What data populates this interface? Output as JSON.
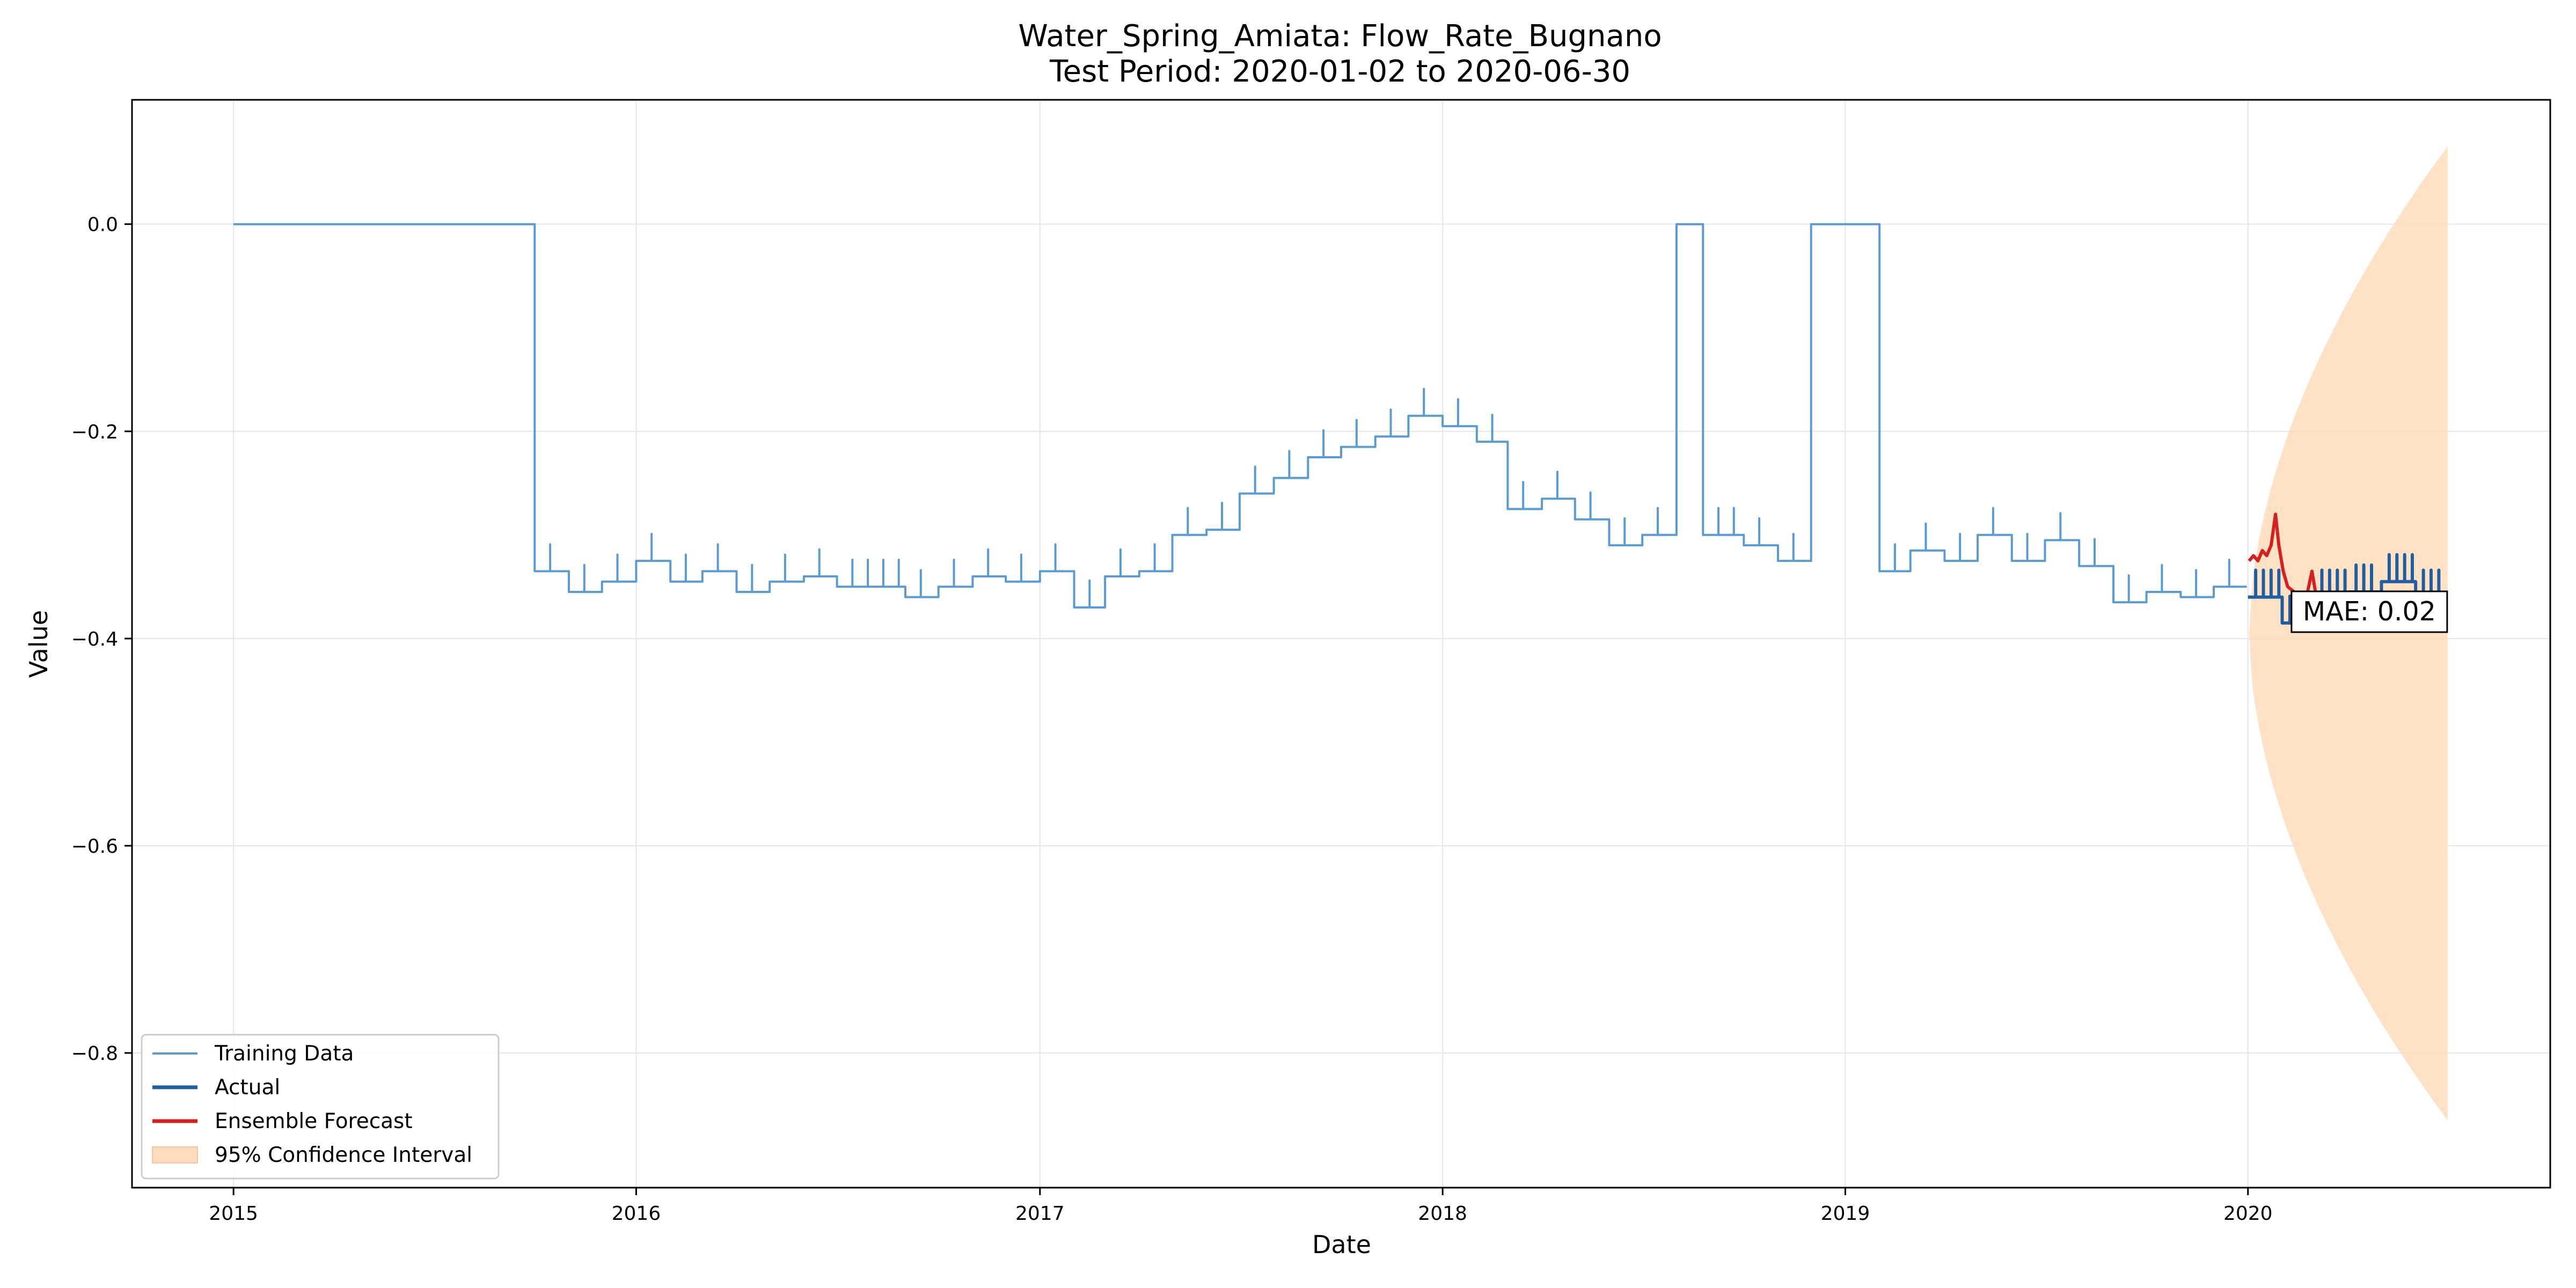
{
  "chart_data": {
    "type": "line",
    "title": "Water_Spring_Amiata: Flow_Rate_Bugnano",
    "subtitle": "Test Period: 2020-01-02 to 2020-06-30",
    "xlabel": "Date",
    "ylabel": "Value",
    "xlim": [
      "2014-10-01",
      "2020-10-01"
    ],
    "ylim": [
      -0.93,
      0.12
    ],
    "x_ticks": [
      "2015",
      "2016",
      "2017",
      "2018",
      "2019",
      "2020"
    ],
    "y_ticks": [
      0.0,
      -0.2,
      -0.4,
      -0.6,
      -0.8
    ],
    "y_tick_labels": [
      "0.0",
      "−0.2",
      "−0.4",
      "−0.6",
      "−0.8"
    ],
    "grid": true,
    "legend_position": "lower-left",
    "series": [
      {
        "name": "Training Data",
        "color": "#5b9bd5",
        "style": "step",
        "ripple": {
          "depth": 0.026,
          "interval_days": 14,
          "start": "2015-10-01",
          "end": "2019-12-31"
        },
        "points": [
          [
            "2015-01-01",
            0.0
          ],
          [
            "2015-10-01",
            -0.335
          ],
          [
            "2015-11-01",
            -0.355
          ],
          [
            "2015-12-01",
            -0.345
          ],
          [
            "2016-01-01",
            -0.325
          ],
          [
            "2016-02-01",
            -0.345
          ],
          [
            "2016-03-01",
            -0.335
          ],
          [
            "2016-04-01",
            -0.355
          ],
          [
            "2016-05-01",
            -0.345
          ],
          [
            "2016-06-01",
            -0.34
          ],
          [
            "2016-07-01",
            -0.35
          ],
          [
            "2016-09-01",
            -0.36
          ],
          [
            "2016-10-01",
            -0.35
          ],
          [
            "2016-11-01",
            -0.34
          ],
          [
            "2016-12-01",
            -0.345
          ],
          [
            "2017-01-01",
            -0.335
          ],
          [
            "2017-02-01",
            -0.37
          ],
          [
            "2017-03-01",
            -0.34
          ],
          [
            "2017-04-01",
            -0.335
          ],
          [
            "2017-05-01",
            -0.3
          ],
          [
            "2017-06-01",
            -0.295
          ],
          [
            "2017-07-01",
            -0.26
          ],
          [
            "2017-08-01",
            -0.245
          ],
          [
            "2017-09-01",
            -0.225
          ],
          [
            "2017-10-01",
            -0.215
          ],
          [
            "2017-11-01",
            -0.205
          ],
          [
            "2017-12-01",
            -0.185
          ],
          [
            "2018-01-01",
            -0.195
          ],
          [
            "2018-02-01",
            -0.21
          ],
          [
            "2018-03-01",
            -0.275
          ],
          [
            "2018-04-01",
            -0.265
          ],
          [
            "2018-05-01",
            -0.285
          ],
          [
            "2018-06-01",
            -0.31
          ],
          [
            "2018-07-01",
            -0.3
          ],
          [
            "2018-08-01",
            0.0
          ],
          [
            "2018-08-25",
            -0.3
          ],
          [
            "2018-10-01",
            -0.31
          ],
          [
            "2018-11-01",
            -0.325
          ],
          [
            "2018-12-01",
            0.0
          ],
          [
            "2019-02-01",
            -0.335
          ],
          [
            "2019-03-01",
            -0.315
          ],
          [
            "2019-04-01",
            -0.325
          ],
          [
            "2019-05-01",
            -0.3
          ],
          [
            "2019-06-01",
            -0.325
          ],
          [
            "2019-07-01",
            -0.305
          ],
          [
            "2019-08-01",
            -0.33
          ],
          [
            "2019-09-01",
            -0.365
          ],
          [
            "2019-10-01",
            -0.355
          ],
          [
            "2019-11-01",
            -0.36
          ],
          [
            "2019-12-01",
            -0.35
          ],
          [
            "2019-12-31",
            -0.35
          ]
        ]
      },
      {
        "name": "Actual",
        "color": "#1f5fa0",
        "style": "step",
        "ripple": {
          "depth": 0.026,
          "interval_days": 7,
          "start": "2020-01-01",
          "end": "2020-06-30"
        },
        "points": [
          [
            "2020-01-01",
            -0.36
          ],
          [
            "2020-02-01",
            -0.385
          ],
          [
            "2020-03-01",
            -0.36
          ],
          [
            "2020-04-01",
            -0.355
          ],
          [
            "2020-05-01",
            -0.345
          ],
          [
            "2020-06-01",
            -0.36
          ],
          [
            "2020-06-30",
            -0.36
          ]
        ]
      },
      {
        "name": "Ensemble Forecast",
        "color": "#d62020",
        "style": "line",
        "points": [
          [
            "2020-01-02",
            -0.325
          ],
          [
            "2020-01-06",
            -0.32
          ],
          [
            "2020-01-10",
            -0.325
          ],
          [
            "2020-01-14",
            -0.315
          ],
          [
            "2020-01-18",
            -0.32
          ],
          [
            "2020-01-22",
            -0.31
          ],
          [
            "2020-01-26",
            -0.28
          ],
          [
            "2020-01-29",
            -0.31
          ],
          [
            "2020-02-02",
            -0.335
          ],
          [
            "2020-02-06",
            -0.35
          ],
          [
            "2020-02-12",
            -0.355
          ],
          [
            "2020-02-18",
            -0.36
          ],
          [
            "2020-02-24",
            -0.355
          ],
          [
            "2020-02-28",
            -0.335
          ],
          [
            "2020-03-03",
            -0.36
          ],
          [
            "2020-03-10",
            -0.36
          ]
        ]
      }
    ],
    "confidence_interval": {
      "name": "95% Confidence Interval",
      "color": "#ffdcbc",
      "start": "2020-01-02",
      "end": "2020-06-30",
      "lower_end": -0.865,
      "upper_end": 0.075,
      "center": -0.395
    },
    "annotation": {
      "text": "MAE: 0.02",
      "x": "2020-04-20",
      "y": -0.37
    }
  }
}
